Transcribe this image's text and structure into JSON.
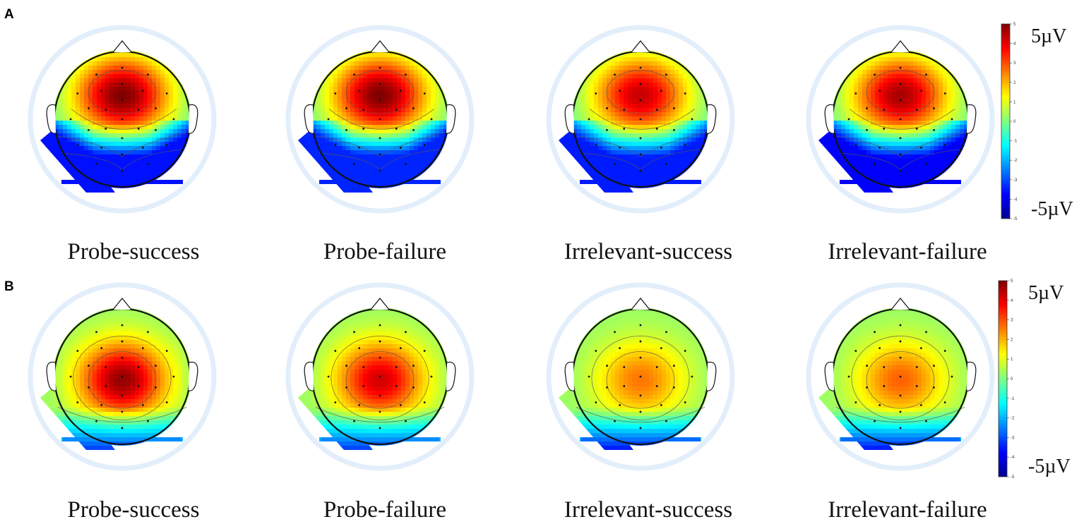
{
  "panels": [
    {
      "letter": "A",
      "scale": {
        "max_label": "5µV",
        "min_label": "-5µV",
        "range": [
          -5,
          5
        ],
        "ticks": [
          "5",
          "4",
          "3",
          "2",
          "1",
          "0",
          "-1",
          "-2",
          "-3",
          "-4",
          "-5"
        ]
      },
      "maps": [
        {
          "label": "Probe-success",
          "pattern": "frontal-positive",
          "peak": 5.0,
          "trough": -3.6
        },
        {
          "label": "Probe-failure",
          "pattern": "frontal-positive",
          "peak": 5.0,
          "trough": -3.4
        },
        {
          "label": "Irrelevant-success",
          "pattern": "frontal-positive",
          "peak": 4.3,
          "trough": -3.5
        },
        {
          "label": "Irrelevant-failure",
          "pattern": "frontal-positive",
          "peak": 4.6,
          "trough": -3.8
        }
      ]
    },
    {
      "letter": "B",
      "scale": {
        "max_label": "5µV",
        "min_label": "-5µV",
        "range": [
          -5,
          5
        ],
        "ticks": [
          "5",
          "4",
          "3",
          "2",
          "1",
          "0",
          "-1",
          "-2",
          "-3",
          "-4",
          "-5"
        ]
      },
      "maps": [
        {
          "label": "Probe-success",
          "pattern": "central-positive",
          "peak": 4.8,
          "trough": -3.2
        },
        {
          "label": "Probe-failure",
          "pattern": "central-positive",
          "peak": 4.2,
          "trough": -3.2
        },
        {
          "label": "Irrelevant-success",
          "pattern": "central-positive",
          "peak": 2.6,
          "trough": -3.6
        },
        {
          "label": "Irrelevant-failure",
          "pattern": "central-positive",
          "peak": 2.8,
          "trough": -3.6
        }
      ]
    }
  ],
  "colormap": [
    "#00008f",
    "#0000ff",
    "#0080ff",
    "#00ffff",
    "#80ff80",
    "#ffff00",
    "#ff8000",
    "#ff0000",
    "#800000"
  ]
}
